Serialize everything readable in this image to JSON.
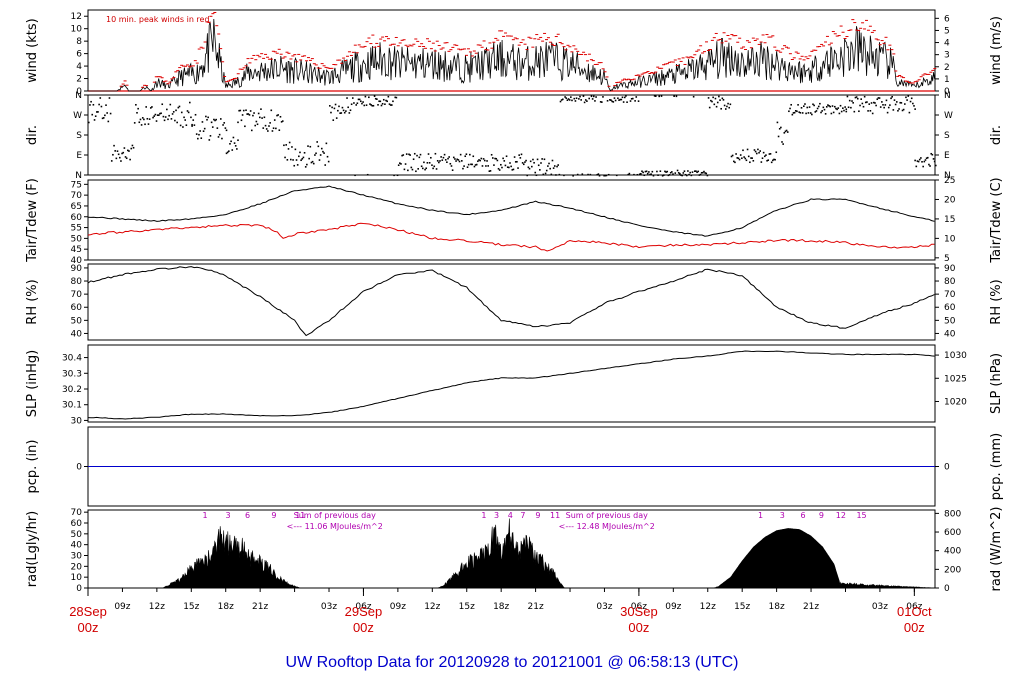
{
  "title": "UW Rooftop Data for 20120928  to  20121001 @ 06:58:13  (UTC)",
  "colors": {
    "axis": "#000000",
    "dew": "#dd0000",
    "peak": "#dd0000",
    "pcp": "#0000cc",
    "title": "#0000cc",
    "day": "#d00000",
    "rad_note": "#b000b0"
  },
  "chart_data": [
    {
      "type": "line",
      "id": "wind",
      "ylabel_left": "wind (kts)",
      "ylabel_right": "wind (m/s)",
      "ylim": [
        0,
        13
      ],
      "yticks_left": [
        0,
        2,
        4,
        6,
        8,
        10,
        12
      ],
      "yticks_right": [
        0,
        1,
        2,
        3,
        4,
        5,
        6
      ],
      "annotation": "10 min. peak winds in red",
      "series": [
        {
          "name": "wind",
          "shape": "noise",
          "x": [
            0,
            2.3,
            2.5,
            3.3,
            3.5,
            4.5,
            5,
            5.5,
            6,
            7,
            8,
            9.5,
            11,
            12,
            13,
            14,
            16.7,
            17,
            19,
            21,
            22,
            24,
            26,
            27,
            30,
            33,
            36,
            38,
            40,
            42,
            45,
            45.5,
            46,
            48,
            50,
            52,
            54,
            56,
            57,
            59,
            61,
            62.5,
            64,
            66,
            67,
            68,
            70,
            70.5,
            72,
            73.8
          ],
          "y": [
            0,
            0,
            0,
            1.5,
            0,
            0,
            1,
            0,
            2,
            1,
            3,
            4,
            11,
            1,
            2,
            4,
            5,
            5,
            4,
            3,
            4,
            6,
            7,
            6,
            6,
            5,
            7,
            6,
            7,
            6,
            3,
            0,
            1,
            2,
            3,
            4,
            6,
            8,
            6,
            7,
            5,
            4,
            6,
            8,
            9,
            8,
            6,
            2,
            1,
            3
          ]
        }
      ]
    },
    {
      "type": "scatter",
      "id": "dir",
      "ylabel_left": "dir.",
      "ylabel_right": "dir.",
      "ytick_labels": [
        "N",
        "E",
        "S",
        "W",
        "N"
      ],
      "ylim": [
        0,
        360
      ]
    },
    {
      "type": "line",
      "id": "temp",
      "ylabel_left": "Tair/Tdew (F)",
      "ylabel_right": "Tair/Tdew (C)",
      "ylim": [
        40,
        77
      ],
      "yticks_left": [
        40,
        45,
        50,
        55,
        60,
        65,
        70,
        75
      ],
      "yticks_right": [
        5,
        10,
        15,
        20,
        25
      ],
      "series": [
        {
          "name": "Tair",
          "x": [
            0,
            3,
            6,
            9,
            12,
            15,
            18,
            21,
            24,
            27,
            30,
            33,
            36,
            39,
            42,
            45,
            48,
            51,
            54,
            57,
            60,
            63,
            66,
            69,
            72,
            73.8
          ],
          "y": [
            60,
            59,
            58,
            59,
            61,
            66,
            72,
            74,
            70,
            66,
            63,
            61,
            63,
            67,
            64,
            60,
            56,
            53,
            51,
            55,
            63,
            68,
            68,
            64,
            60,
            58
          ]
        },
        {
          "name": "Tdew",
          "x": [
            0,
            3,
            6,
            9,
            12,
            15,
            16.5,
            17,
            18,
            21,
            24,
            27,
            30,
            33,
            36,
            39,
            40,
            42,
            45,
            48,
            51,
            54,
            57,
            60,
            63,
            66,
            69,
            72,
            73.8
          ],
          "y": [
            52,
            53,
            54,
            55,
            56,
            56,
            53,
            50,
            52,
            54,
            57,
            54,
            50,
            49,
            47,
            46,
            44,
            49,
            48,
            46,
            47,
            47,
            48,
            49,
            49,
            48,
            46,
            46,
            47
          ]
        }
      ]
    },
    {
      "type": "line",
      "id": "rh",
      "ylabel_left": "RH (%)",
      "ylabel_right": "RH (%)",
      "ylim": [
        35,
        93
      ],
      "yticks_left": [
        40,
        50,
        60,
        70,
        80,
        90
      ],
      "yticks_right": [
        40,
        50,
        60,
        70,
        80,
        90
      ],
      "series": [
        {
          "name": "RH",
          "x": [
            0,
            3,
            6,
            9,
            10,
            12,
            15,
            18,
            19,
            21,
            24,
            27,
            30,
            33,
            35,
            36,
            39,
            42,
            45,
            48,
            51,
            54,
            57,
            60,
            63,
            66,
            69,
            72,
            73.8
          ],
          "y": [
            79,
            85,
            89,
            91,
            90,
            84,
            68,
            50,
            38,
            50,
            72,
            85,
            88,
            75,
            58,
            50,
            45,
            48,
            63,
            72,
            80,
            89,
            84,
            60,
            48,
            44,
            55,
            63,
            70
          ]
        }
      ]
    },
    {
      "type": "line",
      "id": "slp",
      "ylabel_left": "SLP (inHg)",
      "ylabel_right": "SLP (hPa)",
      "ylim": [
        29.99,
        30.48
      ],
      "yticks_left": [
        30.0,
        30.1,
        30.2,
        30.3,
        30.4
      ],
      "yticks_right": [
        1020,
        1025,
        1030
      ],
      "series": [
        {
          "name": "SLP",
          "x": [
            0,
            3,
            6,
            9,
            12,
            15,
            18,
            21,
            24,
            27,
            30,
            33,
            36,
            39,
            42,
            45,
            48,
            51,
            54,
            57,
            60,
            63,
            66,
            69,
            72,
            73.8
          ],
          "y": [
            30.02,
            30.01,
            30.02,
            30.04,
            30.04,
            30.03,
            30.03,
            30.05,
            30.09,
            30.14,
            30.19,
            30.24,
            30.27,
            30.27,
            30.3,
            30.33,
            30.36,
            30.39,
            30.41,
            30.44,
            30.44,
            30.43,
            30.42,
            30.42,
            30.42,
            30.41
          ]
        }
      ]
    },
    {
      "type": "line",
      "id": "pcp",
      "ylabel_left": "pcp. (in)",
      "ylabel_right": "pcp. (mm)",
      "ylim": [
        -1,
        1
      ],
      "ytick_left": "0",
      "ytick_right": "0",
      "series": [
        {
          "name": "pcp",
          "x": [
            0,
            73.8
          ],
          "y": [
            0,
            0
          ]
        }
      ]
    },
    {
      "type": "area",
      "id": "rad",
      "ylabel_left": "rad(Lgly/hr)",
      "ylabel_right": "rad (W/m^2)",
      "ylim": [
        0,
        72
      ],
      "yticks_left": [
        0,
        10,
        20,
        30,
        40,
        50,
        60,
        70
      ],
      "yticks_right": [
        0,
        200,
        400,
        600,
        800
      ],
      "series": [
        {
          "name": "rad",
          "x": [
            0,
            6.5,
            7,
            8,
            9,
            10,
            11,
            11.5,
            12,
            12.5,
            13,
            13.5,
            14,
            15,
            16,
            17,
            18,
            18.5,
            26,
            30.5,
            31,
            32,
            33,
            34,
            35,
            35.5,
            36,
            36.5,
            37,
            37.5,
            38,
            39,
            40,
            41,
            41.5,
            50,
            54.5,
            55,
            56,
            57,
            58,
            59,
            60,
            61,
            62,
            63,
            64,
            65,
            65.5,
            73.8
          ],
          "y": [
            0,
            0,
            3,
            10,
            22,
            30,
            40,
            58,
            48,
            55,
            42,
            50,
            35,
            30,
            20,
            8,
            2,
            0,
            0,
            0,
            3,
            15,
            28,
            35,
            48,
            62,
            40,
            65,
            58,
            40,
            55,
            38,
            25,
            10,
            0,
            0,
            0,
            2,
            10,
            25,
            38,
            47,
            53,
            55,
            54,
            48,
            38,
            22,
            5,
            0
          ]
        }
      ],
      "day_notes": [
        {
          "line1": "Sum of previous day",
          "line2": "<--- 11.06 MJoules/m^2"
        },
        {
          "line1": "Sum of previous day",
          "line2": "<--- 12.48 MJoules/m^2"
        }
      ],
      "hour_marks": [
        {
          "labels": [
            "1",
            "3",
            "6",
            "9",
            "11"
          ],
          "x": [
            10.2,
            12.2,
            13.9,
            16.2,
            18.5
          ]
        },
        {
          "labels": [
            "1",
            "3",
            "4",
            "7",
            "9",
            "11"
          ],
          "x": [
            34.5,
            35.6,
            36.8,
            37.9,
            39.2,
            40.7
          ]
        },
        {
          "labels": [
            "1",
            "3",
            "6",
            "9",
            "12",
            "15"
          ],
          "x": [
            58.6,
            60.5,
            62.3,
            63.9,
            65.6,
            67.4
          ]
        }
      ]
    }
  ],
  "x_axis": {
    "xlim": [
      0,
      73.8
    ],
    "tick_hours": [
      3,
      6,
      9,
      12,
      15,
      18,
      21,
      24,
      27,
      30,
      33,
      36,
      39,
      42,
      45,
      48,
      51,
      54,
      57,
      60,
      63,
      66,
      69,
      72
    ],
    "tick_labels": [
      "09z",
      "12z",
      "15z",
      "18z",
      "21z",
      "",
      "03z",
      "06z",
      "09z",
      "12z",
      "15z",
      "18z",
      "21z",
      "",
      "03z",
      "06z",
      "09z",
      "12z",
      "15z",
      "18z",
      "21z",
      "",
      "03z",
      "06z"
    ],
    "days": [
      {
        "label": "28Sep",
        "hour_label": "00z",
        "x": 0
      },
      {
        "label": "29Sep",
        "hour_label": "00z",
        "x": 24
      },
      {
        "label": "30Sep",
        "hour_label": "00z",
        "x": 48
      },
      {
        "label": "01Oct",
        "hour_label": "00z",
        "x": 72
      }
    ]
  }
}
